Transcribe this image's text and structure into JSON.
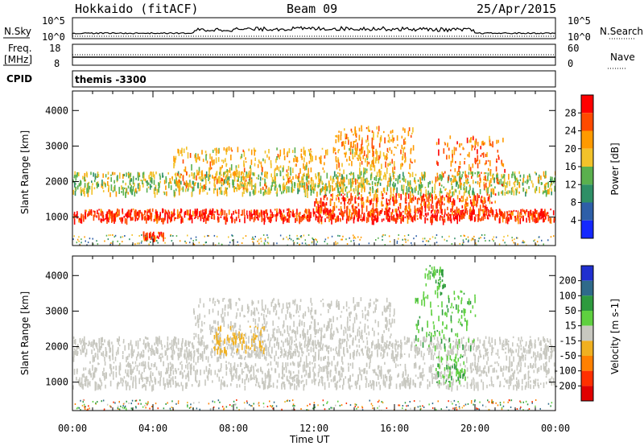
{
  "header": {
    "station": "Hokkaido (fitACF)",
    "beam": "Beam 09",
    "date": "25/Apr/2015"
  },
  "strips": {
    "sky_label": "N.Sky",
    "sky_ticks": [
      "10^5",
      "10^0"
    ],
    "search_label": "N.Search",
    "search_ticks": [
      "10^5",
      "10^0"
    ],
    "freq_label_1": "Freq.",
    "freq_label_2": "[MHz]",
    "freq_ticks": [
      "18",
      "8"
    ],
    "nave_label": "Nave",
    "nave_ticks": [
      "60",
      "0"
    ],
    "cpid_label": "CPID",
    "cpid_value": "themis -3300"
  },
  "chart_data": [
    {
      "type": "heatmap",
      "name": "power",
      "ylabel": "Slant Range [km]",
      "xlabel": "",
      "yticks": [
        "1000",
        "2000",
        "3000",
        "4000"
      ],
      "ylim": [
        200,
        4550
      ],
      "colorbar_label": "Power [dB]",
      "colorbar_ticks": [
        "28",
        "24",
        "20",
        "16",
        "12",
        "8",
        "4"
      ],
      "colorbar_colors": [
        "#ff0000",
        "#ff4a00",
        "#ff9a00",
        "#f2c22a",
        "#5ab04e",
        "#2e8f66",
        "#2e5fa8",
        "#1428ff"
      ],
      "bands": [
        {
          "x": [
            0.0,
            24.0
          ],
          "y": [
            950,
            1250
          ],
          "level": 28
        },
        {
          "x": [
            12.0,
            21.0
          ],
          "y": [
            1200,
            1700
          ],
          "level": 26
        },
        {
          "x": [
            0.0,
            24.0
          ],
          "y": [
            1700,
            2300
          ],
          "level": 16
        },
        {
          "x": [
            5.0,
            16.0
          ],
          "y": [
            1800,
            3000
          ],
          "level": 20
        },
        {
          "x": [
            13.0,
            17.0
          ],
          "y": [
            2500,
            3600
          ],
          "level": 22
        },
        {
          "x": [
            18.0,
            21.5
          ],
          "y": [
            1900,
            3300
          ],
          "level": 24
        },
        {
          "x": [
            3.5,
            4.5
          ],
          "y": [
            450,
            600
          ],
          "level": 28
        }
      ]
    },
    {
      "type": "heatmap",
      "name": "velocity",
      "ylabel": "Slant Range [km]",
      "xlabel": "Time UT",
      "xticks": [
        "00:00",
        "04:00",
        "08:00",
        "12:00",
        "16:00",
        "20:00",
        "00:00"
      ],
      "yticks": [
        "1000",
        "2000",
        "3000",
        "4000"
      ],
      "ylim": [
        200,
        4550
      ],
      "colorbar_label": "Velocity [m s-1]",
      "colorbar_ticks": [
        "200",
        "100",
        "50",
        "15",
        "-15",
        "-50",
        "-100",
        "-200"
      ],
      "colorbar_colors": [
        "#2030d0",
        "#2f6a8a",
        "#2e9a3e",
        "#5fd040",
        "#c8c8c0",
        "#f0b020",
        "#ff8000",
        "#ff3000",
        "#e00000"
      ],
      "bands": [
        {
          "x": [
            0.0,
            24.0
          ],
          "y": [
            900,
            1600
          ],
          "level": 0
        },
        {
          "x": [
            0.0,
            24.0
          ],
          "y": [
            1700,
            2300
          ],
          "level": 0
        },
        {
          "x": [
            6.0,
            16.0
          ],
          "y": [
            2300,
            3400
          ],
          "level": 0
        },
        {
          "x": [
            7.0,
            9.5
          ],
          "y": [
            1900,
            2600
          ],
          "level": -30
        },
        {
          "x": [
            17.0,
            20.0
          ],
          "y": [
            2000,
            3600
          ],
          "level": 40
        },
        {
          "x": [
            17.5,
            18.5
          ],
          "y": [
            3700,
            4300
          ],
          "level": 40
        },
        {
          "x": [
            18.0,
            19.5
          ],
          "y": [
            1000,
            1800
          ],
          "level": 40
        }
      ]
    }
  ]
}
